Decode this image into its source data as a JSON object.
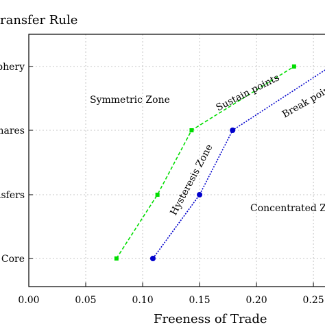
{
  "chart_data": {
    "type": "line",
    "title": "ransfer Rule",
    "xlabel": "Freeness of Trade",
    "ylabel": "",
    "xlim": [
      0.0,
      0.265
    ],
    "xticks": [
      "0.00",
      "0.05",
      "0.10",
      "0.15",
      "0.20",
      "0.25"
    ],
    "xtick_values": [
      0.0,
      0.05,
      0.1,
      0.15,
      0.2,
      0.25
    ],
    "categories": [
      "Core",
      "nsfers",
      "hares",
      "phery"
    ],
    "grid": true,
    "series": [
      {
        "name": "Sustain points",
        "color": "#00dd00",
        "marker": "square",
        "x": [
          0.077,
          0.113,
          0.143,
          0.233
        ],
        "y": [
          "Core",
          "nsfers",
          "hares",
          "phery"
        ]
      },
      {
        "name": "Break points",
        "color": "#0000cc",
        "marker": "circle",
        "x": [
          0.109,
          0.15,
          0.179,
          0.265
        ],
        "y": [
          "Core",
          "nsfers",
          "hares",
          "phery"
        ]
      }
    ],
    "annotations": [
      {
        "text": "Symmetric Zone"
      },
      {
        "text": "Hysteresis Zone"
      },
      {
        "text": "Concentrated Zo"
      }
    ]
  }
}
